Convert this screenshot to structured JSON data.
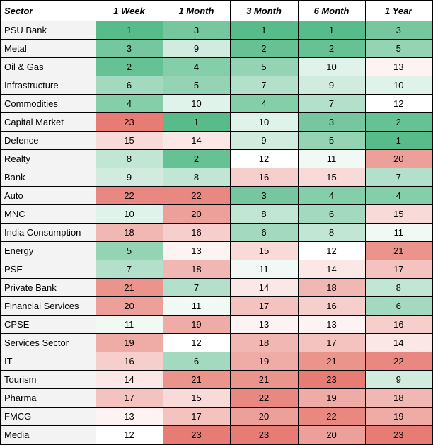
{
  "chart_data": {
    "type": "heatmap",
    "columns": [
      "Sector",
      "1 Week",
      "1 Month",
      "3 Month",
      "6 Month",
      "1 Year"
    ],
    "rows": [
      {
        "sector": "PSU Bank",
        "values": [
          1,
          3,
          1,
          1,
          3
        ]
      },
      {
        "sector": "Metal",
        "values": [
          3,
          9,
          2,
          2,
          5
        ]
      },
      {
        "sector": "Oil & Gas",
        "values": [
          2,
          4,
          5,
          10,
          13
        ]
      },
      {
        "sector": "Infrastructure",
        "values": [
          6,
          5,
          7,
          9,
          10
        ]
      },
      {
        "sector": "Commodities",
        "values": [
          4,
          10,
          4,
          7,
          12
        ]
      },
      {
        "sector": "Capital Market",
        "values": [
          23,
          1,
          10,
          3,
          2
        ]
      },
      {
        "sector": "Defence",
        "values": [
          15,
          14,
          9,
          5,
          1
        ]
      },
      {
        "sector": "Realty",
        "values": [
          8,
          2,
          12,
          11,
          20
        ]
      },
      {
        "sector": "Bank",
        "values": [
          9,
          8,
          16,
          15,
          7
        ]
      },
      {
        "sector": "Auto",
        "values": [
          22,
          22,
          3,
          4,
          4
        ]
      },
      {
        "sector": "MNC",
        "values": [
          10,
          20,
          8,
          6,
          15
        ]
      },
      {
        "sector": "India Consumption",
        "values": [
          18,
          16,
          6,
          8,
          11
        ]
      },
      {
        "sector": "Energy",
        "values": [
          5,
          13,
          15,
          12,
          21
        ]
      },
      {
        "sector": "PSE",
        "values": [
          7,
          18,
          11,
          14,
          17
        ]
      },
      {
        "sector": "Private Bank",
        "values": [
          21,
          7,
          14,
          18,
          8
        ]
      },
      {
        "sector": "Financial Services",
        "values": [
          20,
          11,
          17,
          16,
          6
        ]
      },
      {
        "sector": "CPSE",
        "values": [
          11,
          19,
          13,
          13,
          16
        ]
      },
      {
        "sector": "Services Sector",
        "values": [
          19,
          12,
          18,
          17,
          14
        ]
      },
      {
        "sector": "IT",
        "values": [
          16,
          6,
          19,
          21,
          22
        ]
      },
      {
        "sector": "Tourism",
        "values": [
          14,
          21,
          21,
          23,
          9
        ]
      },
      {
        "sector": "Pharma",
        "values": [
          17,
          15,
          22,
          19,
          18
        ]
      },
      {
        "sector": "FMCG",
        "values": [
          13,
          17,
          20,
          22,
          19
        ]
      },
      {
        "sector": "Media",
        "values": [
          12,
          23,
          23,
          20,
          23
        ]
      }
    ],
    "color_scale": {
      "min_value": 1,
      "min_color": "#57BB8A",
      "mid_value": 12,
      "mid_color": "#FFFFFF",
      "max_value": 23,
      "max_color": "#E67C73"
    },
    "styles": {
      "sector_column_bg": "#F3F3F3",
      "header_bg": "#FFFFFF",
      "border_color": "#000000",
      "text_color": "#000000"
    }
  }
}
